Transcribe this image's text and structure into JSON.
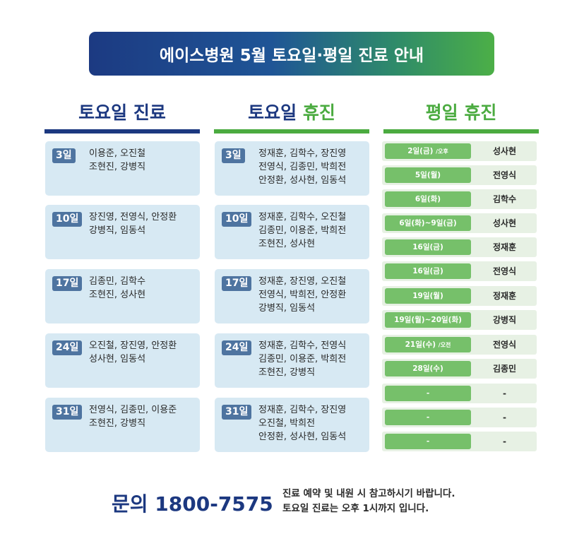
{
  "banner": {
    "title": "에이스병원 5월 토요일·평일 진료 안내"
  },
  "columns": {
    "sat_clinic": {
      "title": "토요일 진료"
    },
    "sat_off": {
      "title_prefix": "토요일",
      "title_accent": "휴진"
    },
    "weekday_off": {
      "title": "평일 휴진"
    }
  },
  "sat_clinic_cards": [
    {
      "day": "3일",
      "lines": [
        "이용준, 오진철",
        "조현진, 강병직"
      ]
    },
    {
      "day": "10일",
      "lines": [
        "장진영, 전영식, 안정환",
        "강병직, 임동석"
      ]
    },
    {
      "day": "17일",
      "lines": [
        "김종민, 김학수",
        "조현진, 성사현"
      ]
    },
    {
      "day": "24일",
      "lines": [
        "오진철, 장진영, 안정환",
        "성사현, 임동석"
      ]
    },
    {
      "day": "31일",
      "lines": [
        "전영식, 김종민, 이용준",
        "조현진, 강병직"
      ]
    }
  ],
  "sat_off_cards": [
    {
      "day": "3일",
      "lines": [
        "정재훈, 김학수, 장진영",
        "전영식, 김종민, 박희전",
        "안정환, 성사현, 임동석"
      ]
    },
    {
      "day": "10일",
      "lines": [
        "정재훈, 김학수, 오진철",
        "김종민, 이용준, 박희전",
        "조현진, 성사현"
      ]
    },
    {
      "day": "17일",
      "lines": [
        "정재훈, 장진영, 오진철",
        "전영식, 박희전, 안정환",
        "강병직, 임동석"
      ]
    },
    {
      "day": "24일",
      "lines": [
        "정재훈, 김학수, 전영식",
        "김종민, 이용준, 박희전",
        "조현진, 강병직"
      ]
    },
    {
      "day": "31일",
      "lines": [
        "정재훈, 김학수, 장진영",
        "오진철, 박희전",
        "안정환, 성사현, 임동석"
      ]
    }
  ],
  "weekday_off_rows": [
    {
      "date": "2일(금)",
      "note": "/오후",
      "name": "성사현"
    },
    {
      "date": "5일(월)",
      "note": "",
      "name": "전영식"
    },
    {
      "date": "6일(화)",
      "note": "",
      "name": "김학수"
    },
    {
      "date": "6일(화)~9일(금)",
      "note": "",
      "name": "성사현"
    },
    {
      "date": "16일(금)",
      "note": "",
      "name": "정재훈"
    },
    {
      "date": "16일(금)",
      "note": "",
      "name": "전영식"
    },
    {
      "date": "19일(월)",
      "note": "",
      "name": "정재훈"
    },
    {
      "date": "19일(월)~20일(화)",
      "note": "",
      "name": "강병직"
    },
    {
      "date": "21일(수)",
      "note": "/오전",
      "name": "전영식"
    },
    {
      "date": "28일(수)",
      "note": "",
      "name": "김종민"
    },
    {
      "date": "-",
      "note": "",
      "name": "-"
    },
    {
      "date": "-",
      "note": "",
      "name": "-"
    },
    {
      "date": "-",
      "note": "",
      "name": "-"
    }
  ],
  "footer": {
    "contact": "문의 1800-7575",
    "note_lines": [
      "진료 예약 및 내원 시 참고하시기 바랍니다.",
      "토요일 진료는 오후 1시까지 입니다."
    ]
  },
  "colors": {
    "navy": "#1c3880",
    "green": "#4bab40",
    "card_blue": "#d7e9f3",
    "badge": "#4e74a0",
    "pill_green": "#76c06a"
  }
}
